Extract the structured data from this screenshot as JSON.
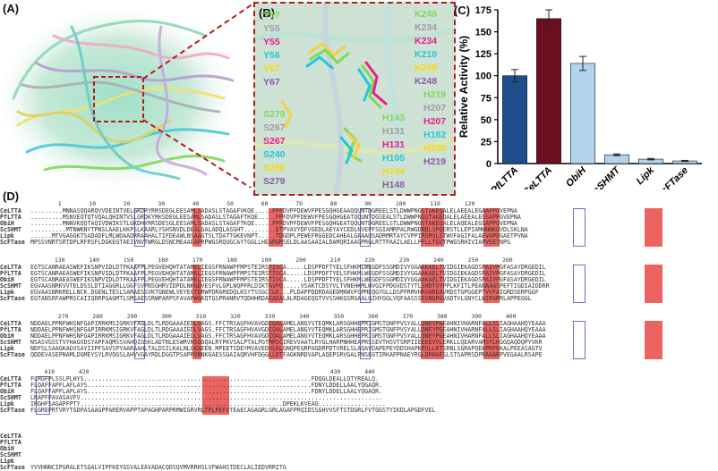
{
  "panels": {
    "a": "(A)",
    "b": "(B)",
    "c": "(C)",
    "d": "(D)"
  },
  "zoom_labels": {
    "left": [
      {
        "text": "Y67",
        "color": "#7ed957"
      },
      {
        "text": "Y55",
        "color": "#9e9e9e"
      },
      {
        "text": "Y55",
        "color": "#e91e8c"
      },
      {
        "text": "Y56",
        "color": "#26c6da"
      },
      {
        "text": "Y67",
        "color": "#ffd700"
      },
      {
        "text": "Y67",
        "color": "#8e5aa6"
      },
      {
        "text": "S279",
        "color": "#7ed957"
      },
      {
        "text": "S267",
        "color": "#9e9e9e"
      },
      {
        "text": "S267",
        "color": "#e91e8c"
      },
      {
        "text": "S240",
        "color": "#26c6da"
      },
      {
        "text": "S280",
        "color": "#ffd700"
      },
      {
        "text": "S279",
        "color": "#8e5aa6"
      }
    ],
    "right": [
      {
        "text": "K248",
        "color": "#7ed957"
      },
      {
        "text": "K234",
        "color": "#9e9e9e"
      },
      {
        "text": "K234",
        "color": "#e91e8c"
      },
      {
        "text": "K210",
        "color": "#26c6da"
      },
      {
        "text": "K248",
        "color": "#ffd700"
      },
      {
        "text": "K248",
        "color": "#8e5aa6"
      },
      {
        "text": "H219",
        "color": "#7ed957"
      },
      {
        "text": "H207",
        "color": "#9e9e9e"
      },
      {
        "text": "H207",
        "color": "#e91e8c"
      },
      {
        "text": "H182",
        "color": "#26c6da"
      },
      {
        "text": "H220",
        "color": "#ffd700"
      },
      {
        "text": "H219",
        "color": "#8e5aa6"
      },
      {
        "text": "H143",
        "color": "#7ed957"
      },
      {
        "text": "H131",
        "color": "#9e9e9e"
      },
      {
        "text": "H131",
        "color": "#e91e8c"
      },
      {
        "text": "H105",
        "color": "#26c6da"
      },
      {
        "text": "H144",
        "color": "#ffd700"
      },
      {
        "text": "H148",
        "color": "#8e5aa6"
      }
    ]
  },
  "chart_data": {
    "type": "bar",
    "categories": [
      "PfLTTA",
      "CeLTTA",
      "ObiH",
      "ScSHMT",
      "Lipk",
      "ScFTase"
    ],
    "values": [
      100,
      165,
      114,
      10,
      5,
      3
    ],
    "errors": [
      7,
      10,
      8,
      1,
      0.8,
      0.6
    ],
    "colors": [
      "#1f4e8c",
      "#6b0f1e",
      "#b3d4ef",
      "#b3d4ef",
      "#b3d4ef",
      "#b3d4ef"
    ],
    "ylabel": "Relative Activity (%)",
    "xlabel": "",
    "ylim": [
      0,
      175
    ],
    "yticks": [
      "0",
      "25",
      "50",
      "75",
      "100",
      "125",
      "150",
      "175"
    ]
  },
  "alignment": {
    "names": [
      "CeLTTA",
      "PfLTTA",
      "ObiH",
      "ScSHMT",
      "Lipk",
      "ScFTase"
    ],
    "blocks": [
      {
        "ruler": "        1        10        20        30        40        50        60        70        80        90       100       110       120",
        "rows": [
          ".........MNNASQQARQVVDEINTVELGKDRYRRSDEGLEESAMLSADASLSTAGAFVKQE.....FPFDVPFDEWVFPESGQHGEAAQQUNTDGREELSTLDWWPNGSTAKEQALELAEEALEGAAPPGVEPNA",
          ".........MSNVEQTQTVQALQHINTVSLGRDKYRKSDEGLEESAMLSADASLSTAGAFTKQE.....FPFDVPFDEWVFPESGQHGEATQQUNTDGSEALSTLDWWPNGSTAKEQALELAEEALEGSAPPGVEPNA",
          ".........MNNVKQQTAQIVDWIKSTLGKDHYRRSDESGLEESAMLSADASLSTAGAFTKQE.....FPFDVPFDEWVFPESGQHGEATQQUNTDGREELSTLDWWPNGSTAKEQALELAQEALEGSAPPGVEPNA",
          "..........MTNWKNYTPNSLAAELKKPSLKAARLYSHSNVDLDEALGALADQLASGHT.........ETPVAVYDFVGEDLAEYAYCEDLNVEPFSGIAMRPALRWGDNDLSPQERSTLLEPIAMHNNKGVDLSKLNA",
          "......MTVGAGGKTSADADFLMLWDAADRRAAHALTIFDEAWLNSAAGTSLTDATTGKEVNPT.....TDGDPLPEWEFRGGEDCAHEALGAAAUSADRMRTAYCVPPIRSRVLSTWVFAGIFALAEVAPEGAETPVNA",
          "MPSSVNRTSRTDPLRFRSFLDGKEGTAEIVNVTWRGLDSNCMEAAEAPRPWGSRQUGCAYTGGLLHEARGRSELDLAASAAIALDAMQRIAAGPRGLRTTPAAILAELLPFLLTGVTPWGSRHIVIAPVEETNPG"
        ]
      },
      {
        "ruler": "       130       140       150       160       170       180       190       200       210       220       230       240       250       260",
        "rows": [
          "EGTSCANRAEASWEFIKSNPVIDLDTFKAAFPLPEGVEHQHTATAMELIEGSFRNAWPFMPSTEIRSTISCA.....LDSPPDFTYELSFHKMLWEGDFSSGMDIVYGGAAKAELTVIDGIEKAGDSPAIVPGFASAYDRGEDIL",
          "EGTSCANRAEASWEFIKSNPVIDLDTFKAAFPLPEGVEHQHTATAMELIEGSFRNAWPFMPSTEIRSTISCA.....LDSPPDFTYELSFHKMLWEGDFSSGMDIVYGGAAKAELTVIDGIEKAGDSPAIVPGFASAYDRGEDIL",
          "EGTSCANRAEASWEFIKSNPVIDLDTFKAAFPLPEGVEHQHTATAMELIEGSFRNAWPFMPSTEIRSTISCA.....LDSPPDFTYELSFHKMLWEGDFSSGMDIVYGGAAKAELTVIDGIEKAGDSPAIVPGFASAYDRGEDIL",
          "EGVAASNRKVVTELDSSLDTIAGGRLLGGFSVPNSGHRVIDPDLNKGDVESFVLGPLNQPFRLDIKTAVPQ.....VSAKTCDSYVLTVNEHKMLWVGIFPDGVDSTYTLSHDTVYPPLKFITLPEANAAGSPEFTIGDIAIDDRR",
          "EGVAASNRKRELLNCK.DGENLTESLSAMAESSVKTGNEWLVEYEGTDRWPDRAREDQLKSYTSSGCCLK...PLDAPPDDRDAGEDMKWVFGPMEQGYGLLDSPFRMVHRVAREAVRDSTGPGGEPTVVFAIGRDSERPGGF",
          "EGTANSRFAWPRSCAIIQDRPGAGMTLSMSAESSRWPARPSFAVAPWGKQTGSPRANRVTQDHHRDAEAEALALRDAGEQGTVVSSHKGSRGAALGIHYGGLVQFAASSSEVNGPGVADTVLGNYCLWIPARRLAPPEGGL"
        ]
      },
      {
        "ruler": "        270       280       290       300       310       320       330       340       350       360       370       380       390       400",
        "rows": [
          "NDDAELPPNFWHSNFGAPIRRKMSIGRKVFAGLDLTLRDGAAAIEDLVAGS.FFCTRSAGFHVAVGDIQALAMELANGYVTEQMKLARSGHHEPRIGMSTGNFPVSYALLQNEYPGEAHNIVHARNFALLSLIAGHAAHQYEAAA",
          "NDDAELPPNFWHSNFGAPIRRKMSIGRKVFAGLDLTLRDGAAAIEDLVAGS.FFCTRSAGFHVAVGDIQALAMELANGYVTEQMKLARSGHHEPRIGMSTGNFPVSYALLQNEYPGEAHNIVHARNFALLSLIAGHAAHQYEAAA",
          "NDDAELPPNFWHSNFGAPIRRKMSIGRKVFAGLDLTLRDGAAAIEDLVAGS.FFCTRSAGFHVAVGDIQALAMELANGYVTEQMKLARSGHHEPRIGMSTGNFPVSYALLQNEYPGEAHNIVHARNFALLSLIAGHAAHQYEAAA",
          "NSASVGSSTVYHAGVDSYAPFAQMSSVAHQIGSKLADTNLESWRVNSGGQALRYPKVSALPTALPGTMRSCIREVVAATLRYGLHARPNHHEAPRSSEVTHSVTSRPIIEEEEVVLERKLLQEARVAMSYLKGGQAQDQPYVKR",
          "NDFSLSAAGKAGVSAYIIPFSAVSPYAARAAHLTALDSILKALNLGKAEEN.MPEETSDEYMVAVEDVLKLGNQPEGRPAGDRPDTVRELSLAQAVDAPEPEYDDSHAPKRVLLKTSRNLSGRAPQEKPRFEKALPEEASAGTV",
          "QDDEVASEPNAMLDGMEYSYLRVQGSLAHVVGAYRDLDGGTPSAPRVNNKGAESSGAIAQRVHFDGGLLDTFAGKNRDVAPLAQEPSRVGALPNSEGTIRKAPPNAEYRGLDRHAFSLSTSAPRSDPRAAARPVEGAALRSAPE"
        ]
      },
      {
        "ruler": "    410       420                                                                      430       440",
        "rows": [
          "FLRGFPLSSLPLHYS................................................................FDQGLDEALLQTYREALQ.",
          "FLQAFFAPFLAFLAYS...............................................................FDNYLDDELLAALYQGAQR.",
          "FLQAFFAPFLAPLAYS...............................................................FDNYLDDELLAALYQGAQR.",
          "LRAPFPAVASAVFV.....................................................................................",
          "IRGHFSAGAPFPTY.........................................................DPEKLKVEAG...................",
          "FLGREPRTVRYTGDPASAAGPPARERVAPPTAPAGHPARPRMWIGRVRLTPLPEFVTEAECAGAGRLGRLAGAFPRQIDSSGHVVSFTSTDGRLFVTGGSTYIKDLAPGDFVEL"
        ]
      },
      {
        "ruler": "",
        "rows": [
          "",
          "",
          "",
          "",
          "",
          "YVVHNNCIPGRALETSGALVIPFKEYGSVALEAVADACQDSQVMVRRHSLVFWAHSTDECLALIEDVRRITG"
        ]
      }
    ]
  }
}
